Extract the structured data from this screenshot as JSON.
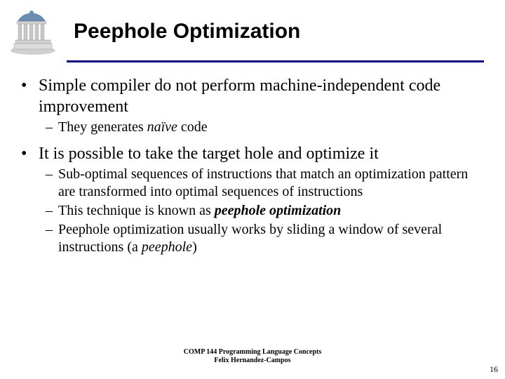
{
  "colors": {
    "divider": "#000080",
    "text": "#000000",
    "background": "#ffffff"
  },
  "fontsizes": {
    "title": 30,
    "bullet1": 24,
    "bullet2": 20,
    "footer": 10,
    "pagenum": 12
  },
  "title": "Peephole Optimization",
  "bullets": [
    {
      "level": 1,
      "segments": [
        {
          "text": "Simple compiler do not perform machine-independent code improvement",
          "style": "normal"
        }
      ]
    },
    {
      "level": 2,
      "segments": [
        {
          "text": "They generates ",
          "style": "normal"
        },
        {
          "text": "naïve",
          "style": "italic"
        },
        {
          "text": " code",
          "style": "normal"
        }
      ]
    },
    {
      "level": 0
    },
    {
      "level": 1,
      "segments": [
        {
          "text": "It is possible to take the target hole and optimize it",
          "style": "normal"
        }
      ]
    },
    {
      "level": 2,
      "segments": [
        {
          "text": "Sub-optimal sequences of instructions that match an optimization pattern are transformed into optimal sequences of instructions",
          "style": "normal"
        }
      ]
    },
    {
      "level": 2,
      "segments": [
        {
          "text": "This technique is known as ",
          "style": "normal"
        },
        {
          "text": "peephole optimization",
          "style": "bolditalic"
        }
      ]
    },
    {
      "level": 2,
      "segments": [
        {
          "text": "Peephole optimization usually works by sliding a window of several instructions (a ",
          "style": "normal"
        },
        {
          "text": "peephole",
          "style": "italic"
        },
        {
          "text": ")",
          "style": "normal"
        }
      ]
    }
  ],
  "footer": {
    "line1": "COMP 144 Programming Language Concepts",
    "line2": "Felix Hernandez-Campos"
  },
  "page_number": "16",
  "logo": {
    "dome_color": "#6b8db0",
    "base_color": "#dcdcdc",
    "pillar_color": "#c8c8c8",
    "shadow_color": "#8a8a8a"
  }
}
